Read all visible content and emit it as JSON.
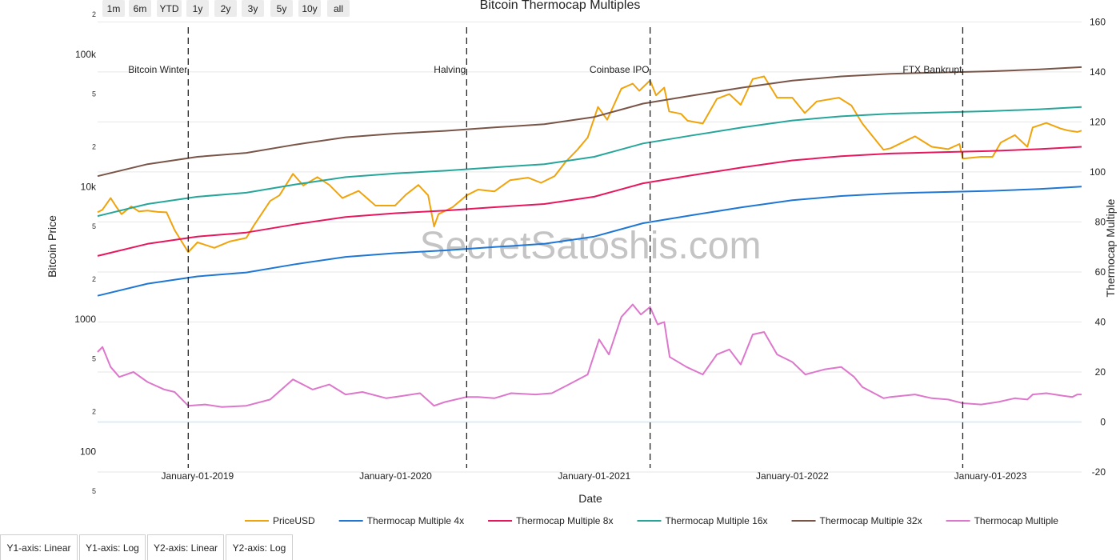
{
  "range_buttons": [
    "1m",
    "6m",
    "YTD",
    "1y",
    "2y",
    "3y",
    "5y",
    "10y",
    "all"
  ],
  "axis_buttons": [
    "Y1-axis: Linear",
    "Y1-axis: Log",
    "Y2-axis: Linear",
    "Y2-axis: Log"
  ],
  "watermark": "SecretSatoshis.com",
  "colors": {
    "price": "#f0a30a",
    "tm4": "#1f77d4",
    "tm8": "#e6175c",
    "tm16": "#26a69a",
    "tm32": "#795548",
    "tm": "#dd77cc",
    "grid": "#e6e6e6",
    "zero_line": "#dcecf5"
  },
  "chart_data": {
    "type": "line",
    "title": "Bitcoin Thermocap Multiples",
    "xlabel": "Date",
    "ylabel": "Bitcoin Price",
    "y2label": "Thermocap Multiple",
    "y_scale": "log",
    "y_range": [
      70,
      200000
    ],
    "y_major_ticks": [
      {
        "value": 100000,
        "label": "100k"
      },
      {
        "value": 10000,
        "label": "10k"
      },
      {
        "value": 1000,
        "label": "1000"
      },
      {
        "value": 100,
        "label": "100"
      }
    ],
    "y_minor_ticks": [
      {
        "value": 200000,
        "label": "2"
      },
      {
        "value": 50000,
        "label": "5"
      },
      {
        "value": 20000,
        "label": "2"
      },
      {
        "value": 5000,
        "label": "5"
      },
      {
        "value": 2000,
        "label": "2"
      },
      {
        "value": 500,
        "label": "5"
      },
      {
        "value": 200,
        "label": "2"
      },
      {
        "value": 50,
        "label": "5"
      }
    ],
    "y2_range": [
      -20,
      163
    ],
    "y2_ticks": [
      -20,
      0,
      20,
      40,
      60,
      80,
      100,
      120,
      140,
      160
    ],
    "x_range": [
      "2018-07-01",
      "2023-06-18"
    ],
    "x_ticks": [
      {
        "date": "2019-01-01",
        "label": "January-01-2019"
      },
      {
        "date": "2020-01-01",
        "label": "January-01-2020"
      },
      {
        "date": "2021-01-01",
        "label": "January-01-2021"
      },
      {
        "date": "2022-01-01",
        "label": "January-01-2022"
      },
      {
        "date": "2023-01-01",
        "label": "January-01-2023"
      }
    ],
    "events": [
      {
        "date": "2018-12-15",
        "label": "Bitcoin Winter"
      },
      {
        "date": "2020-05-11",
        "label": "Halving"
      },
      {
        "date": "2021-04-14",
        "label": "Coinbase IPO"
      },
      {
        "date": "2022-11-11",
        "label": "FTX Bankrupt"
      }
    ],
    "legend_position": "bottom",
    "series": [
      {
        "name": "PriceUSD",
        "key": "price",
        "axis": "y1",
        "points": [
          [
            "2018-07-01",
            6400
          ],
          [
            "2018-07-10",
            6700
          ],
          [
            "2018-07-25",
            8200
          ],
          [
            "2018-08-05",
            7000
          ],
          [
            "2018-08-14",
            6200
          ],
          [
            "2018-09-01",
            7100
          ],
          [
            "2018-09-15",
            6500
          ],
          [
            "2018-10-01",
            6600
          ],
          [
            "2018-10-20",
            6450
          ],
          [
            "2018-11-05",
            6400
          ],
          [
            "2018-11-20",
            4700
          ],
          [
            "2018-12-15",
            3200
          ],
          [
            "2019-01-01",
            3800
          ],
          [
            "2019-02-01",
            3450
          ],
          [
            "2019-03-01",
            3850
          ],
          [
            "2019-04-01",
            4100
          ],
          [
            "2019-04-15",
            5100
          ],
          [
            "2019-05-15",
            7800
          ],
          [
            "2019-06-01",
            8600
          ],
          [
            "2019-06-26",
            12500
          ],
          [
            "2019-07-15",
            10200
          ],
          [
            "2019-08-10",
            11800
          ],
          [
            "2019-09-01",
            10300
          ],
          [
            "2019-09-25",
            8200
          ],
          [
            "2019-10-25",
            9300
          ],
          [
            "2019-11-25",
            7200
          ],
          [
            "2019-12-31",
            7200
          ],
          [
            "2020-01-20",
            8700
          ],
          [
            "2020-02-12",
            10300
          ],
          [
            "2020-03-01",
            8600
          ],
          [
            "2020-03-12",
            5000
          ],
          [
            "2020-03-20",
            6200
          ],
          [
            "2020-04-15",
            7000
          ],
          [
            "2020-05-11",
            8600
          ],
          [
            "2020-06-01",
            9500
          ],
          [
            "2020-07-01",
            9200
          ],
          [
            "2020-07-30",
            11200
          ],
          [
            "2020-09-01",
            11700
          ],
          [
            "2020-09-25",
            10700
          ],
          [
            "2020-10-20",
            12000
          ],
          [
            "2020-11-10",
            15500
          ],
          [
            "2020-12-01",
            19000
          ],
          [
            "2020-12-20",
            23500
          ],
          [
            "2021-01-08",
            40000
          ],
          [
            "2021-01-25",
            32000
          ],
          [
            "2021-02-20",
            55000
          ],
          [
            "2021-03-13",
            60000
          ],
          [
            "2021-03-25",
            53000
          ],
          [
            "2021-04-14",
            63500
          ],
          [
            "2021-04-25",
            49000
          ],
          [
            "2021-05-10",
            56000
          ],
          [
            "2021-05-19",
            37000
          ],
          [
            "2021-06-10",
            35500
          ],
          [
            "2021-06-22",
            31500
          ],
          [
            "2021-07-20",
            30000
          ],
          [
            "2021-08-15",
            46000
          ],
          [
            "2021-09-07",
            50000
          ],
          [
            "2021-09-28",
            41500
          ],
          [
            "2021-10-20",
            65000
          ],
          [
            "2021-11-10",
            68000
          ],
          [
            "2021-12-04",
            47000
          ],
          [
            "2022-01-01",
            47000
          ],
          [
            "2022-01-24",
            36000
          ],
          [
            "2022-02-15",
            44000
          ],
          [
            "2022-03-28",
            47000
          ],
          [
            "2022-04-20",
            41000
          ],
          [
            "2022-05-10",
            30000
          ],
          [
            "2022-06-18",
            19000
          ],
          [
            "2022-07-01",
            19500
          ],
          [
            "2022-08-15",
            24000
          ],
          [
            "2022-09-15",
            20000
          ],
          [
            "2022-10-15",
            19200
          ],
          [
            "2022-11-05",
            21000
          ],
          [
            "2022-11-11",
            16300
          ],
          [
            "2022-12-15",
            16800
          ],
          [
            "2023-01-05",
            16800
          ],
          [
            "2023-01-20",
            21500
          ],
          [
            "2023-02-15",
            24500
          ],
          [
            "2023-03-10",
            20000
          ],
          [
            "2023-03-20",
            28000
          ],
          [
            "2023-04-14",
            30300
          ],
          [
            "2023-05-10",
            27500
          ],
          [
            "2023-05-25",
            26500
          ],
          [
            "2023-06-10",
            25900
          ],
          [
            "2023-06-18",
            26500
          ]
        ]
      },
      {
        "name": "Thermocap Multiple 4x",
        "key": "tm4",
        "axis": "y1",
        "points": [
          [
            "2018-07-01",
            1500
          ],
          [
            "2018-10-01",
            1850
          ],
          [
            "2019-01-01",
            2100
          ],
          [
            "2019-04-01",
            2250
          ],
          [
            "2019-07-01",
            2600
          ],
          [
            "2019-10-01",
            2950
          ],
          [
            "2020-01-01",
            3150
          ],
          [
            "2020-04-01",
            3300
          ],
          [
            "2020-07-01",
            3500
          ],
          [
            "2020-10-01",
            3700
          ],
          [
            "2021-01-01",
            4200
          ],
          [
            "2021-04-01",
            5300
          ],
          [
            "2021-07-01",
            6100
          ],
          [
            "2021-10-01",
            7000
          ],
          [
            "2022-01-01",
            7900
          ],
          [
            "2022-04-01",
            8500
          ],
          [
            "2022-07-01",
            8900
          ],
          [
            "2022-10-01",
            9100
          ],
          [
            "2023-01-01",
            9300
          ],
          [
            "2023-04-01",
            9600
          ],
          [
            "2023-06-18",
            10000
          ]
        ]
      },
      {
        "name": "Thermocap Multiple 8x",
        "key": "tm8",
        "axis": "y1",
        "points": [
          [
            "2018-07-01",
            3000
          ],
          [
            "2018-10-01",
            3700
          ],
          [
            "2019-01-01",
            4200
          ],
          [
            "2019-04-01",
            4500
          ],
          [
            "2019-07-01",
            5200
          ],
          [
            "2019-10-01",
            5900
          ],
          [
            "2020-01-01",
            6300
          ],
          [
            "2020-04-01",
            6600
          ],
          [
            "2020-07-01",
            7000
          ],
          [
            "2020-10-01",
            7400
          ],
          [
            "2021-01-01",
            8400
          ],
          [
            "2021-04-01",
            10600
          ],
          [
            "2021-07-01",
            12200
          ],
          [
            "2021-10-01",
            14000
          ],
          [
            "2022-01-01",
            15800
          ],
          [
            "2022-04-01",
            17000
          ],
          [
            "2022-07-01",
            17800
          ],
          [
            "2022-10-01",
            18200
          ],
          [
            "2023-01-01",
            18600
          ],
          [
            "2023-04-01",
            19200
          ],
          [
            "2023-06-18",
            20000
          ]
        ]
      },
      {
        "name": "Thermocap Multiple 16x",
        "key": "tm16",
        "axis": "y1",
        "points": [
          [
            "2018-07-01",
            6000
          ],
          [
            "2018-10-01",
            7400
          ],
          [
            "2019-01-01",
            8400
          ],
          [
            "2019-04-01",
            9000
          ],
          [
            "2019-07-01",
            10400
          ],
          [
            "2019-10-01",
            11800
          ],
          [
            "2020-01-01",
            12600
          ],
          [
            "2020-04-01",
            13200
          ],
          [
            "2020-07-01",
            14000
          ],
          [
            "2020-10-01",
            14800
          ],
          [
            "2021-01-01",
            16800
          ],
          [
            "2021-04-01",
            21200
          ],
          [
            "2021-07-01",
            24400
          ],
          [
            "2021-10-01",
            28000
          ],
          [
            "2022-01-01",
            31600
          ],
          [
            "2022-04-01",
            34000
          ],
          [
            "2022-07-01",
            35600
          ],
          [
            "2022-10-01",
            36400
          ],
          [
            "2023-01-01",
            37200
          ],
          [
            "2023-04-01",
            38400
          ],
          [
            "2023-06-18",
            40000
          ]
        ]
      },
      {
        "name": "Thermocap Multiple 32x",
        "key": "tm32",
        "axis": "y1",
        "points": [
          [
            "2018-07-01",
            12000
          ],
          [
            "2018-10-01",
            14800
          ],
          [
            "2019-01-01",
            16800
          ],
          [
            "2019-04-01",
            18000
          ],
          [
            "2019-07-01",
            20800
          ],
          [
            "2019-10-01",
            23600
          ],
          [
            "2020-01-01",
            25200
          ],
          [
            "2020-04-01",
            26400
          ],
          [
            "2020-07-01",
            28000
          ],
          [
            "2020-10-01",
            29600
          ],
          [
            "2021-01-01",
            33600
          ],
          [
            "2021-04-01",
            42400
          ],
          [
            "2021-07-01",
            48800
          ],
          [
            "2021-10-01",
            56000
          ],
          [
            "2022-01-01",
            63200
          ],
          [
            "2022-04-01",
            68000
          ],
          [
            "2022-07-01",
            71200
          ],
          [
            "2022-10-01",
            72800
          ],
          [
            "2023-01-01",
            74400
          ],
          [
            "2023-04-01",
            76800
          ],
          [
            "2023-06-18",
            80000
          ]
        ]
      },
      {
        "name": "Thermocap Multiple",
        "key": "tm",
        "axis": "y2",
        "points": [
          [
            "2018-07-01",
            28
          ],
          [
            "2018-07-10",
            30
          ],
          [
            "2018-07-25",
            22
          ],
          [
            "2018-08-10",
            18
          ],
          [
            "2018-09-05",
            20
          ],
          [
            "2018-10-01",
            16
          ],
          [
            "2018-11-01",
            13
          ],
          [
            "2018-11-20",
            12
          ],
          [
            "2018-12-15",
            6.5
          ],
          [
            "2019-01-15",
            7
          ],
          [
            "2019-02-15",
            6
          ],
          [
            "2019-04-01",
            6.5
          ],
          [
            "2019-05-15",
            9
          ],
          [
            "2019-06-26",
            17
          ],
          [
            "2019-08-01",
            13
          ],
          [
            "2019-09-01",
            15
          ],
          [
            "2019-10-01",
            11
          ],
          [
            "2019-11-01",
            12
          ],
          [
            "2019-12-15",
            9.5
          ],
          [
            "2020-01-15",
            10.5
          ],
          [
            "2020-02-15",
            11.5
          ],
          [
            "2020-03-12",
            6.5
          ],
          [
            "2020-04-01",
            8
          ],
          [
            "2020-05-11",
            10
          ],
          [
            "2020-06-01",
            10
          ],
          [
            "2020-07-01",
            9.5
          ],
          [
            "2020-08-01",
            11.5
          ],
          [
            "2020-09-15",
            11
          ],
          [
            "2020-10-15",
            11.5
          ],
          [
            "2020-11-15",
            15
          ],
          [
            "2020-12-20",
            19
          ],
          [
            "2021-01-10",
            33
          ],
          [
            "2021-01-28",
            27
          ],
          [
            "2021-02-20",
            42
          ],
          [
            "2021-03-13",
            47
          ],
          [
            "2021-03-28",
            43
          ],
          [
            "2021-04-14",
            46
          ],
          [
            "2021-04-28",
            39
          ],
          [
            "2021-05-10",
            40
          ],
          [
            "2021-05-20",
            26
          ],
          [
            "2021-06-20",
            22
          ],
          [
            "2021-07-20",
            19
          ],
          [
            "2021-08-15",
            27
          ],
          [
            "2021-09-07",
            29
          ],
          [
            "2021-09-28",
            23
          ],
          [
            "2021-10-20",
            35
          ],
          [
            "2021-11-10",
            36
          ],
          [
            "2021-12-04",
            27
          ],
          [
            "2022-01-01",
            24
          ],
          [
            "2022-01-25",
            19
          ],
          [
            "2022-03-01",
            21
          ],
          [
            "2022-04-01",
            22
          ],
          [
            "2022-04-25",
            18
          ],
          [
            "2022-05-10",
            14
          ],
          [
            "2022-06-18",
            9.5
          ],
          [
            "2022-07-01",
            10
          ],
          [
            "2022-08-15",
            11
          ],
          [
            "2022-09-15",
            9.5
          ],
          [
            "2022-10-15",
            9
          ],
          [
            "2022-11-11",
            7.5
          ],
          [
            "2022-12-15",
            7
          ],
          [
            "2023-01-15",
            8
          ],
          [
            "2023-02-15",
            9.5
          ],
          [
            "2023-03-10",
            9
          ],
          [
            "2023-03-20",
            11
          ],
          [
            "2023-04-14",
            11.5
          ],
          [
            "2023-05-15",
            10.5
          ],
          [
            "2023-06-01",
            10
          ],
          [
            "2023-06-10",
            11
          ],
          [
            "2023-06-18",
            11
          ]
        ]
      }
    ]
  }
}
